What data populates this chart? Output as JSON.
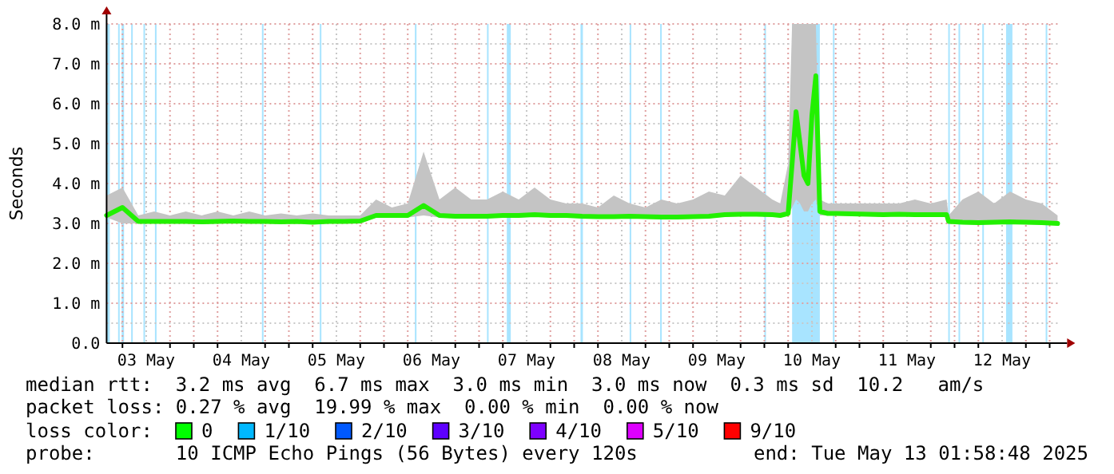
{
  "chart_data": {
    "type": "line",
    "ylabel": "Seconds",
    "grid": true,
    "xlim": [
      "2025-05-03T02:00",
      "2025-05-13T02:00"
    ],
    "xticks": [
      {
        "value": "2025-05-03T06:00",
        "label": null
      },
      {
        "value": "2025-05-03T12:00",
        "label": "03 May"
      },
      {
        "value": "2025-05-03T18:00",
        "label": null
      },
      {
        "value": "2025-05-04T00:00",
        "label": null
      },
      {
        "value": "2025-05-04T06:00",
        "label": null
      },
      {
        "value": "2025-05-04T12:00",
        "label": "04 May"
      },
      {
        "value": "2025-05-04T18:00",
        "label": null
      },
      {
        "value": "2025-05-05T00:00",
        "label": null
      },
      {
        "value": "2025-05-05T06:00",
        "label": null
      },
      {
        "value": "2025-05-05T12:00",
        "label": "05 May"
      },
      {
        "value": "2025-05-05T18:00",
        "label": null
      },
      {
        "value": "2025-05-06T00:00",
        "label": null
      },
      {
        "value": "2025-05-06T06:00",
        "label": null
      },
      {
        "value": "2025-05-06T12:00",
        "label": "06 May"
      },
      {
        "value": "2025-05-06T18:00",
        "label": null
      },
      {
        "value": "2025-05-07T00:00",
        "label": null
      },
      {
        "value": "2025-05-07T06:00",
        "label": null
      },
      {
        "value": "2025-05-07T12:00",
        "label": "07 May"
      },
      {
        "value": "2025-05-07T18:00",
        "label": null
      },
      {
        "value": "2025-05-08T00:00",
        "label": null
      },
      {
        "value": "2025-05-08T06:00",
        "label": null
      },
      {
        "value": "2025-05-08T12:00",
        "label": "08 May"
      },
      {
        "value": "2025-05-08T18:00",
        "label": null
      },
      {
        "value": "2025-05-09T00:00",
        "label": null
      },
      {
        "value": "2025-05-09T06:00",
        "label": null
      },
      {
        "value": "2025-05-09T12:00",
        "label": "09 May"
      },
      {
        "value": "2025-05-09T18:00",
        "label": null
      },
      {
        "value": "2025-05-10T00:00",
        "label": null
      },
      {
        "value": "2025-05-10T06:00",
        "label": null
      },
      {
        "value": "2025-05-10T12:00",
        "label": "10 May"
      },
      {
        "value": "2025-05-10T18:00",
        "label": null
      },
      {
        "value": "2025-05-11T00:00",
        "label": null
      },
      {
        "value": "2025-05-11T06:00",
        "label": null
      },
      {
        "value": "2025-05-11T12:00",
        "label": "11 May"
      },
      {
        "value": "2025-05-11T18:00",
        "label": null
      },
      {
        "value": "2025-05-12T00:00",
        "label": null
      },
      {
        "value": "2025-05-12T06:00",
        "label": null
      },
      {
        "value": "2025-05-12T12:00",
        "label": "12 May"
      },
      {
        "value": "2025-05-12T18:00",
        "label": null
      },
      {
        "value": "2025-05-13T00:00",
        "label": null
      }
    ],
    "ylim": [
      0,
      8
    ],
    "yticks": [
      {
        "value": 0,
        "label": "0.0"
      },
      {
        "value": 0.5,
        "label": null
      },
      {
        "value": 1,
        "label": "1.0 m"
      },
      {
        "value": 1.5,
        "label": null
      },
      {
        "value": 2,
        "label": "2.0 m"
      },
      {
        "value": 2.5,
        "label": null
      },
      {
        "value": 3,
        "label": "3.0 m"
      },
      {
        "value": 3.5,
        "label": null
      },
      {
        "value": 4,
        "label": "4.0 m"
      },
      {
        "value": 4.5,
        "label": null
      },
      {
        "value": 5,
        "label": "5.0 m"
      },
      {
        "value": 5.5,
        "label": null
      },
      {
        "value": 6,
        "label": "6.0 m"
      },
      {
        "value": 6.5,
        "label": null
      },
      {
        "value": 7,
        "label": "7.0 m"
      },
      {
        "value": 7.5,
        "label": null
      },
      {
        "value": 8,
        "label": "8.0 m"
      }
    ],
    "bands": [
      {
        "axis": "x",
        "from": "2025-05-03T02:00",
        "to": "2025-05-03T02:48",
        "color": "#a8e4ff"
      },
      {
        "axis": "x",
        "from": "2025-05-03T04:54",
        "to": "2025-05-03T05:18",
        "color": "#a8e4ff"
      },
      {
        "axis": "x",
        "from": "2025-05-03T05:48",
        "to": "2025-05-03T06:24",
        "color": "#a8e4ff"
      },
      {
        "axis": "x",
        "from": "2025-05-03T08:12",
        "to": "2025-05-03T08:36",
        "color": "#a8e4ff"
      },
      {
        "axis": "x",
        "from": "2025-05-03T11:18",
        "to": "2025-05-03T11:42",
        "color": "#a8e4ff"
      },
      {
        "axis": "x",
        "from": "2025-05-03T14:12",
        "to": "2025-05-03T14:36",
        "color": "#a8e4ff"
      },
      {
        "axis": "x",
        "from": "2025-05-04T17:12",
        "to": "2025-05-04T17:36",
        "color": "#a8e4ff"
      },
      {
        "axis": "x",
        "from": "2025-05-05T07:48",
        "to": "2025-05-05T08:12",
        "color": "#a8e4ff"
      },
      {
        "axis": "x",
        "from": "2025-05-06T07:48",
        "to": "2025-05-06T08:12",
        "color": "#a8e4ff"
      },
      {
        "axis": "x",
        "from": "2025-05-07T02:00",
        "to": "2025-05-07T02:24",
        "color": "#a8e4ff"
      },
      {
        "axis": "x",
        "from": "2025-05-07T07:00",
        "to": "2025-05-07T08:00",
        "color": "#a8e4ff"
      },
      {
        "axis": "x",
        "from": "2025-05-08T01:36",
        "to": "2025-05-08T02:12",
        "color": "#a8e4ff"
      },
      {
        "axis": "x",
        "from": "2025-05-08T14:00",
        "to": "2025-05-08T14:24",
        "color": "#a8e4ff"
      },
      {
        "axis": "x",
        "from": "2025-05-08T21:42",
        "to": "2025-05-08T22:06",
        "color": "#a8e4ff"
      },
      {
        "axis": "x",
        "from": "2025-05-10T00:00",
        "to": "2025-05-10T00:24",
        "color": "#a8e4ff"
      },
      {
        "axis": "x",
        "from": "2025-05-10T07:00",
        "to": "2025-05-10T14:00",
        "color": "#a8e4ff"
      },
      {
        "axis": "x",
        "from": "2025-05-10T17:18",
        "to": "2025-05-10T17:42",
        "color": "#a8e4ff"
      },
      {
        "axis": "x",
        "from": "2025-05-11T22:24",
        "to": "2025-05-11T22:48",
        "color": "#a8e4ff"
      },
      {
        "axis": "x",
        "from": "2025-05-12T01:00",
        "to": "2025-05-12T01:24",
        "color": "#a8e4ff"
      },
      {
        "axis": "x",
        "from": "2025-05-12T07:00",
        "to": "2025-05-12T07:24",
        "color": "#a8e4ff"
      },
      {
        "axis": "x",
        "from": "2025-05-12T13:00",
        "to": "2025-05-12T14:36",
        "color": "#a8e4ff"
      },
      {
        "axis": "x",
        "from": "2025-05-12T23:00",
        "to": "2025-05-12T23:24",
        "color": "#a8e4ff"
      }
    ],
    "series": [
      {
        "color": "#22f000",
        "x": [
          "2025-05-03T02:00",
          "2025-05-03T06:00",
          "2025-05-03T10:00",
          "2025-05-03T14:00",
          "2025-05-03T18:00",
          "2025-05-03T22:00",
          "2025-05-04T02:00",
          "2025-05-04T06:00",
          "2025-05-04T10:00",
          "2025-05-04T14:00",
          "2025-05-04T18:00",
          "2025-05-04T22:00",
          "2025-05-05T02:00",
          "2025-05-05T06:00",
          "2025-05-05T10:00",
          "2025-05-05T14:00",
          "2025-05-05T18:00",
          "2025-05-05T22:00",
          "2025-05-06T02:00",
          "2025-05-06T06:00",
          "2025-05-06T10:00",
          "2025-05-06T14:00",
          "2025-05-06T18:00",
          "2025-05-06T22:00",
          "2025-05-07T02:00",
          "2025-05-07T06:00",
          "2025-05-07T10:00",
          "2025-05-07T14:00",
          "2025-05-07T18:00",
          "2025-05-07T22:00",
          "2025-05-08T02:00",
          "2025-05-08T06:00",
          "2025-05-08T10:00",
          "2025-05-08T14:00",
          "2025-05-08T18:00",
          "2025-05-08T22:00",
          "2025-05-09T02:00",
          "2025-05-09T06:00",
          "2025-05-09T10:00",
          "2025-05-09T14:00",
          "2025-05-09T18:00",
          "2025-05-09T22:00",
          "2025-05-10T02:00",
          "2025-05-10T04:00",
          "2025-05-10T06:00",
          "2025-05-10T07:00",
          "2025-05-10T08:00",
          "2025-05-10T09:00",
          "2025-05-10T10:00",
          "2025-05-10T11:00",
          "2025-05-10T12:00",
          "2025-05-10T13:00",
          "2025-05-10T14:00",
          "2025-05-10T16:00",
          "2025-05-10T18:00",
          "2025-05-10T22:00",
          "2025-05-11T02:00",
          "2025-05-11T06:00",
          "2025-05-11T10:00",
          "2025-05-11T14:00",
          "2025-05-11T18:00",
          "2025-05-11T22:00",
          "2025-05-11T22:30",
          "2025-05-12T02:00",
          "2025-05-12T06:00",
          "2025-05-12T10:00",
          "2025-05-12T14:00",
          "2025-05-12T18:00",
          "2025-05-12T22:00",
          "2025-05-13T02:00"
        ],
        "values": [
          3.2,
          3.4,
          3.05,
          3.05,
          3.05,
          3.05,
          3.04,
          3.05,
          3.06,
          3.05,
          3.05,
          3.04,
          3.05,
          3.03,
          3.05,
          3.05,
          3.06,
          3.2,
          3.2,
          3.2,
          3.45,
          3.2,
          3.18,
          3.18,
          3.18,
          3.2,
          3.2,
          3.22,
          3.2,
          3.2,
          3.18,
          3.17,
          3.17,
          3.18,
          3.17,
          3.16,
          3.16,
          3.17,
          3.18,
          3.22,
          3.23,
          3.23,
          3.22,
          3.2,
          3.25,
          4.5,
          5.8,
          5.0,
          4.2,
          4.0,
          5.7,
          6.7,
          3.3,
          3.25,
          3.25,
          3.24,
          3.23,
          3.22,
          3.23,
          3.22,
          3.22,
          3.22,
          3.05,
          3.03,
          3.02,
          3.03,
          3.04,
          3.03,
          3.02,
          3.0
        ],
        "lower": [
          3.15,
          3.0,
          3.0,
          3.0,
          3.0,
          3.0,
          2.99,
          3.0,
          3.0,
          3.0,
          3.0,
          2.99,
          3.0,
          2.98,
          3.0,
          3.0,
          3.0,
          3.15,
          3.15,
          3.15,
          3.2,
          3.15,
          3.13,
          3.13,
          3.13,
          3.15,
          3.15,
          3.17,
          3.15,
          3.15,
          3.13,
          3.12,
          3.12,
          3.13,
          3.12,
          3.11,
          3.11,
          3.12,
          3.13,
          3.17,
          3.18,
          3.18,
          3.17,
          3.15,
          3.2,
          3.4,
          3.6,
          3.5,
          3.3,
          3.3,
          3.5,
          3.6,
          3.2,
          3.2,
          3.2,
          3.19,
          3.18,
          3.17,
          3.18,
          3.17,
          3.17,
          3.17,
          3.0,
          2.98,
          2.97,
          2.98,
          2.99,
          2.98,
          2.97,
          2.95
        ],
        "upper": [
          3.7,
          3.9,
          3.2,
          3.3,
          3.2,
          3.3,
          3.2,
          3.3,
          3.2,
          3.3,
          3.2,
          3.25,
          3.2,
          3.25,
          3.2,
          3.2,
          3.2,
          3.6,
          3.4,
          3.5,
          4.8,
          3.6,
          3.9,
          3.6,
          3.6,
          3.8,
          3.6,
          3.9,
          3.6,
          3.5,
          3.5,
          3.4,
          3.7,
          3.5,
          3.4,
          3.6,
          3.5,
          3.6,
          3.8,
          3.7,
          4.2,
          3.9,
          3.6,
          3.5,
          4.5,
          8.0,
          8.0,
          8.0,
          8.0,
          8.0,
          8.0,
          8.0,
          3.6,
          3.5,
          3.5,
          3.5,
          3.5,
          3.5,
          3.5,
          3.6,
          3.5,
          3.6,
          3.2,
          3.6,
          3.8,
          3.5,
          3.8,
          3.6,
          3.5,
          3.2
        ]
      }
    ],
    "annotations": [
      "median rtt:  3.2 ms avg  6.7 ms max  3.0 ms min  3.0 ms now  0.3 ms sd  10.2   am/s",
      "packet loss: 0.27 % avg  19.99 % max  0.00 % min  0.00 % now",
      "loss color:",
      "0",
      "1/10",
      "2/10",
      "3/10",
      "4/10",
      "5/10",
      "9/10",
      "probe:       10 ICMP Echo Pings (56 Bytes) every 120s",
      "end: Tue May 13 01:58:48 2025"
    ]
  }
}
